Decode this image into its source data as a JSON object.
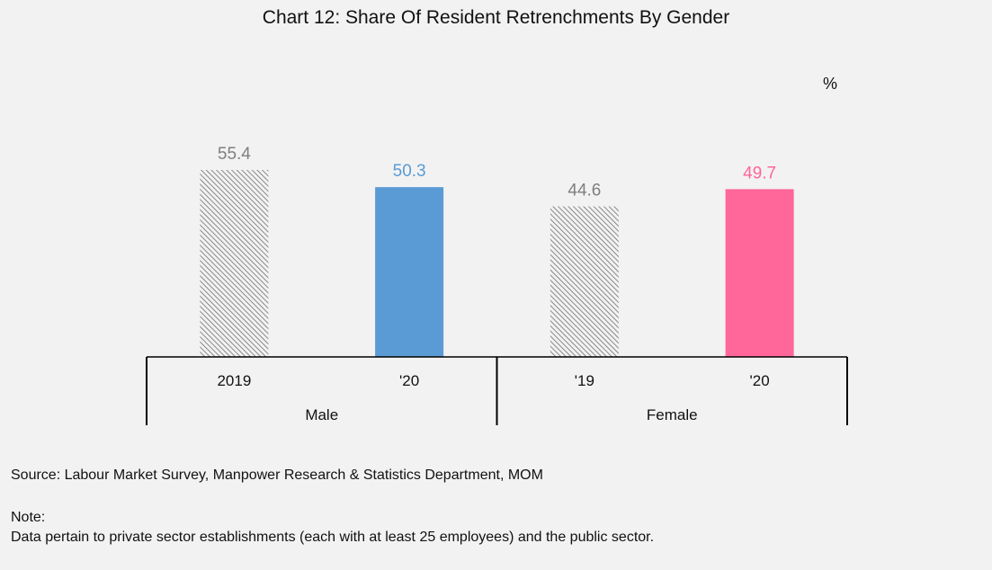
{
  "title": "Chart 12: Share Of Resident Retrenchments By Gender",
  "unit": "%",
  "source": "Source: Labour Market Survey, Manpower Research & Statistics Department, MOM",
  "note_heading": "Note:",
  "note_text": "Data pertain to private sector establishments (each with at least 25 employees) and the public sector.",
  "chart_data": {
    "type": "bar",
    "title": "Chart 12: Share Of Resident Retrenchments By Gender",
    "xlabel": "",
    "ylabel": "%",
    "ylim": [
      0,
      55.4
    ],
    "grid": false,
    "groups": [
      {
        "name": "Male",
        "categories": [
          "2019",
          "'20"
        ],
        "values": [
          55.4,
          50.3
        ],
        "styles": [
          "hatched",
          "solid"
        ],
        "colors": [
          "#7f7f7f",
          "#5b9bd5"
        ],
        "label_colors": [
          "#7f7f7f",
          "#5b9bd5"
        ]
      },
      {
        "name": "Female",
        "categories": [
          "'19",
          "'20"
        ],
        "values": [
          44.6,
          49.7
        ],
        "styles": [
          "hatched",
          "solid"
        ],
        "colors": [
          "#7f7f7f",
          "#ff6699"
        ],
        "label_colors": [
          "#7f7f7f",
          "#ff6699"
        ]
      }
    ]
  }
}
